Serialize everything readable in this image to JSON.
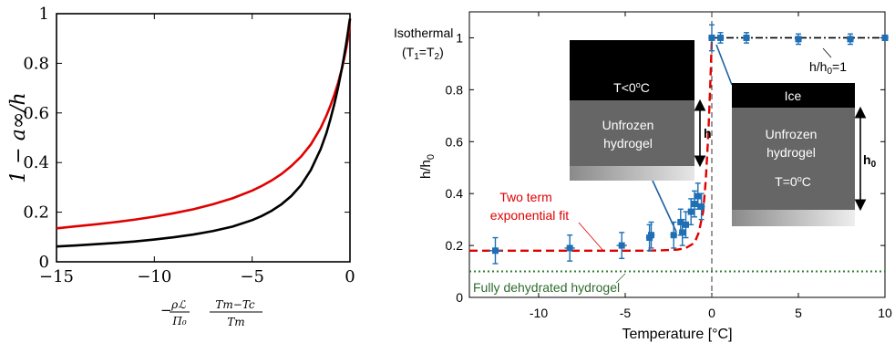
{
  "chart_data": [
    {
      "type": "line",
      "title": "",
      "xlabel": "−(ρℒ/Π₀)·(Tm−Tc)/Tm",
      "ylabel": "1 − a∞/h",
      "xlim": [
        -15,
        0
      ],
      "ylim": [
        0,
        1
      ],
      "xticks": [
        -15,
        -10,
        -5,
        0
      ],
      "xtick_labels": [
        "−15",
        "−10",
        "−5",
        "0"
      ],
      "yticks": [
        0,
        0.2,
        0.4,
        0.6,
        0.8,
        1
      ],
      "ytick_labels": [
        "0",
        "0.2",
        "0.4",
        "0.6",
        "0.8",
        "1"
      ],
      "grid": false,
      "series": [
        {
          "color": "#e00000",
          "x": [
            -15,
            -14,
            -13,
            -12,
            -11,
            -10,
            -9,
            -8,
            -7,
            -6,
            -5,
            -4.5,
            -4,
            -3.5,
            -3,
            -2.5,
            -2,
            -1.5,
            -1.2,
            -1,
            -0.8,
            -0.6,
            -0.4,
            -0.3,
            -0.2,
            -0.1,
            -0.05,
            0
          ],
          "y": [
            0.135,
            0.143,
            0.151,
            0.16,
            0.17,
            0.182,
            0.196,
            0.212,
            0.232,
            0.256,
            0.287,
            0.306,
            0.328,
            0.354,
            0.386,
            0.424,
            0.473,
            0.539,
            0.59,
            0.629,
            0.673,
            0.723,
            0.783,
            0.818,
            0.857,
            0.902,
            0.93,
            0.98
          ]
        },
        {
          "color": "#000000",
          "x": [
            -15,
            -14,
            -13,
            -12,
            -11,
            -10,
            -9,
            -8,
            -7,
            -6,
            -5,
            -4.5,
            -4,
            -3.5,
            -3,
            -2.5,
            -2,
            -1.5,
            -1.2,
            -1,
            -0.8,
            -0.6,
            -0.4,
            -0.3,
            -0.2,
            -0.1,
            -0.05,
            0
          ],
          "y": [
            0.062,
            0.066,
            0.071,
            0.076,
            0.082,
            0.09,
            0.099,
            0.11,
            0.124,
            0.142,
            0.168,
            0.185,
            0.206,
            0.232,
            0.265,
            0.309,
            0.37,
            0.454,
            0.52,
            0.575,
            0.636,
            0.705,
            0.785,
            0.829,
            0.876,
            0.927,
            0.955,
            0.98
          ]
        }
      ]
    },
    {
      "type": "scatter",
      "title": "",
      "xlabel": "Temperature [°C]",
      "ylabel": "h/h0",
      "ylabel_main": "h/h",
      "ylabel_sub": "0",
      "xlim": [
        -14,
        10
      ],
      "ylim": [
        0,
        1.1
      ],
      "xticks": [
        -10,
        -5,
        0,
        5,
        10
      ],
      "xtick_labels": [
        "-10",
        "-5",
        "0",
        "5",
        "10"
      ],
      "yticks": [
        0,
        0.2,
        0.4,
        0.6,
        0.8,
        1
      ],
      "ytick_labels": [
        "0",
        "0.2",
        "0.4",
        "0.6",
        "0.8",
        "1"
      ],
      "grid": false,
      "measurements": {
        "color": "#1f6fb5",
        "points": [
          {
            "x": -12.5,
            "y": 0.18,
            "err": 0.05,
            "xerr": 0.4
          },
          {
            "x": -8.2,
            "y": 0.19,
            "err": 0.05,
            "xerr": 0.3
          },
          {
            "x": -5.2,
            "y": 0.2,
            "err": 0.05,
            "xerr": 0.3
          },
          {
            "x": -3.6,
            "y": 0.23,
            "err": 0.05,
            "xerr": 0.2
          },
          {
            "x": -3.5,
            "y": 0.24,
            "err": 0.05,
            "xerr": 0.2
          },
          {
            "x": -2.2,
            "y": 0.24,
            "err": 0.05,
            "xerr": 0.2
          },
          {
            "x": -1.8,
            "y": 0.29,
            "err": 0.05,
            "xerr": 0.2
          },
          {
            "x": -1.7,
            "y": 0.25,
            "err": 0.05,
            "xerr": 0.2
          },
          {
            "x": -1.5,
            "y": 0.28,
            "err": 0.05,
            "xerr": 0.2
          },
          {
            "x": -1.2,
            "y": 0.33,
            "err": 0.05,
            "xerr": 0.2
          },
          {
            "x": -1.0,
            "y": 0.36,
            "err": 0.05,
            "xerr": 0.2
          },
          {
            "x": -0.8,
            "y": 0.39,
            "err": 0.05,
            "xerr": 0.2
          },
          {
            "x": -0.6,
            "y": 0.35,
            "err": 0.05,
            "xerr": 0.2
          },
          {
            "x": 0.0,
            "y": 1.0,
            "err": 0.05,
            "xerr": 0.2
          },
          {
            "x": 0.5,
            "y": 1.0,
            "err": 0.02,
            "xerr": 0.2
          },
          {
            "x": 2.0,
            "y": 1.0,
            "err": 0.02,
            "xerr": 0.2
          },
          {
            "x": 5.0,
            "y": 0.995,
            "err": 0.02,
            "xerr": 0.2
          },
          {
            "x": 8.0,
            "y": 0.995,
            "err": 0.02,
            "xerr": 0.2
          },
          {
            "x": 10.0,
            "y": 1.0,
            "err": 0.01,
            "xerr": 0.2
          }
        ]
      },
      "fit": {
        "color": "#e00000",
        "x": [
          -14,
          -10,
          -6,
          -4,
          -3,
          -2,
          -1.5,
          -1,
          -0.75,
          -0.5,
          -0.35,
          -0.2,
          -0.1,
          0
        ],
        "y": [
          0.18,
          0.18,
          0.18,
          0.18,
          0.181,
          0.184,
          0.19,
          0.21,
          0.25,
          0.33,
          0.45,
          0.63,
          0.8,
          0.99
        ]
      },
      "reference_line": {
        "y": 1,
        "color": "#000000",
        "label": "h/h",
        "label_sub": "0",
        "label_eq": "=1"
      },
      "dehydrated_line": {
        "y": 0.1,
        "color": "#2e7d32",
        "label": "Fully dehydrated hydrogel"
      },
      "zero_line": {
        "x": 0
      },
      "annotations": {
        "isothermal_line1": "Isothermal",
        "isothermal_line2": "(T",
        "isothermal_sub1": "1",
        "isothermal_mid": "=T",
        "isothermal_sub2": "2",
        "isothermal_end": ")",
        "fit_label_line1": "Two term",
        "fit_label_line2": "exponential fit"
      },
      "inset_frozen": {
        "top_label": "T<0",
        "top_deg": "o",
        "top_unit": "C",
        "body_line1": "Unfrozen",
        "body_line2": "hydrogel",
        "arrow_label": "h"
      },
      "inset_thawed": {
        "top_label": "Ice",
        "body_line1": "Unfrozen",
        "body_line2": "hydrogel",
        "temp_label": "T=0",
        "temp_deg": "o",
        "temp_unit": "C",
        "arrow_label": "h",
        "arrow_sub": "0"
      }
    }
  ]
}
